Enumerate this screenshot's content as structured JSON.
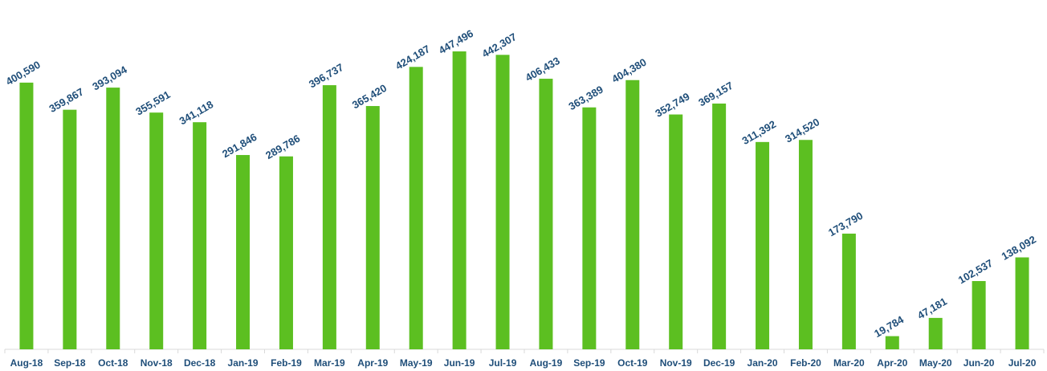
{
  "chart_data": {
    "type": "bar",
    "title": "",
    "xlabel": "",
    "ylabel": "",
    "ylim": [
      0,
      470000
    ],
    "grid": false,
    "legend": "none",
    "bar_color": "#5cbf21",
    "label_color": "#1f4e79",
    "categories": [
      "Aug-18",
      "Sep-18",
      "Oct-18",
      "Nov-18",
      "Dec-18",
      "Jan-19",
      "Feb-19",
      "Mar-19",
      "Apr-19",
      "May-19",
      "Jun-19",
      "Jul-19",
      "Aug-19",
      "Sep-19",
      "Oct-19",
      "Nov-19",
      "Dec-19",
      "Jan-20",
      "Feb-20",
      "Mar-20",
      "Apr-20",
      "May-20",
      "Jun-20",
      "Jul-20"
    ],
    "values": [
      400590,
      359867,
      393094,
      355591,
      341118,
      291846,
      289786,
      396737,
      365420,
      424187,
      447496,
      442307,
      406433,
      363389,
      404380,
      352749,
      369157,
      311392,
      314520,
      173790,
      19784,
      47181,
      102537,
      138092
    ],
    "data_labels": [
      "400,590",
      "359,867",
      "393,094",
      "355,591",
      "341,118",
      "291,846",
      "289,786",
      "396,737",
      "365,420",
      "424,187",
      "447,496",
      "442,307",
      "406,433",
      "363,389",
      "404,380",
      "352,749",
      "369,157",
      "311,392",
      "314,520",
      "173,790",
      "19,784",
      "47,181",
      "102,537",
      "138,092"
    ]
  }
}
